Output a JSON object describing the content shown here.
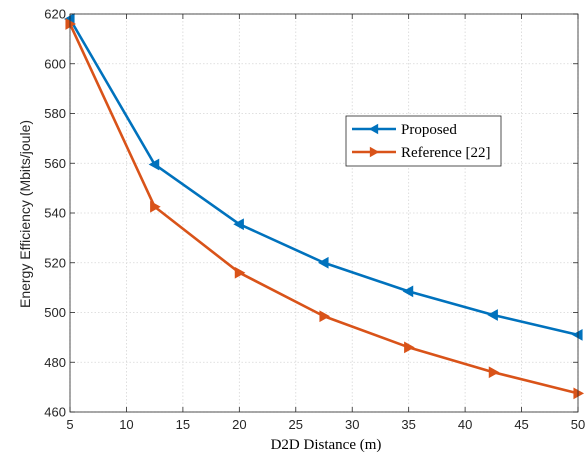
{
  "chart_data": {
    "type": "line",
    "xlabel": "D2D Distance (m)",
    "ylabel": "Energy Efficiency (Mbits/joule)",
    "xlim": [
      5,
      50
    ],
    "ylim": [
      460,
      620
    ],
    "xticks": [
      5,
      10,
      15,
      20,
      25,
      30,
      35,
      40,
      45,
      50
    ],
    "yticks": [
      460,
      480,
      500,
      520,
      540,
      560,
      580,
      600,
      620
    ],
    "grid": true,
    "legend_position": "center-right",
    "series": [
      {
        "name": "Proposed",
        "color": "#0072BD",
        "marker": "left-triangle",
        "x": [
          5,
          12.5,
          20,
          27.5,
          35,
          42.5,
          50
        ],
        "y": [
          618,
          559.5,
          535.5,
          520,
          508.5,
          499,
          491
        ]
      },
      {
        "name": "Reference [22]",
        "color": "#D95319",
        "marker": "right-triangle",
        "x": [
          5,
          12.5,
          20,
          27.5,
          35,
          42.5,
          50
        ],
        "y": [
          616,
          542.5,
          516,
          498.5,
          486,
          476,
          467.5
        ]
      }
    ]
  }
}
